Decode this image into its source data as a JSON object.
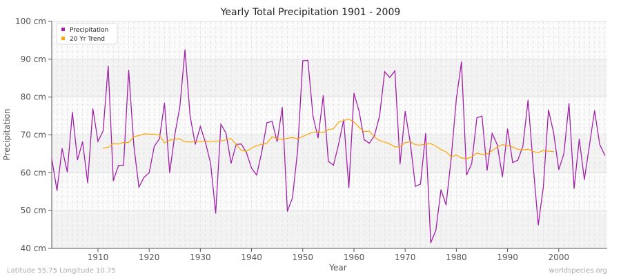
{
  "chart_data": {
    "type": "line",
    "title": "Yearly Total Precipitation 1901 - 2009",
    "xlabel": "Year",
    "ylabel": "Precipitation",
    "xlim": [
      1901,
      2009
    ],
    "ylim": [
      40,
      100
    ],
    "y_unit": "cm",
    "x_ticks": [
      1910,
      1920,
      1930,
      1940,
      1950,
      1960,
      1970,
      1980,
      1990,
      2000
    ],
    "y_ticks": [
      40,
      50,
      60,
      70,
      80,
      90,
      100
    ],
    "y_tick_labels": [
      "40 cm",
      "50 cm",
      "60 cm",
      "70 cm",
      "80 cm",
      "90 cm",
      "100 cm"
    ],
    "grid": true,
    "legend_position": "top-left",
    "series": [
      {
        "name": "Precipitation",
        "color": "#a020a8",
        "x_start": 1901,
        "values": [
          63.5,
          55.3,
          66.4,
          60.2,
          76.0,
          63.4,
          68.2,
          57.3,
          76.9,
          68.3,
          71.0,
          88.2,
          57.9,
          61.9,
          62.0,
          87.1,
          67.3,
          56.2,
          58.8,
          60.0,
          67.0,
          68.9,
          78.4,
          60.0,
          70.0,
          77.5,
          92.5,
          75.0,
          67.5,
          72.2,
          68.0,
          62.5,
          49.3,
          72.8,
          70.5,
          62.5,
          67.5,
          67.6,
          65.3,
          61.2,
          59.4,
          65.5,
          73.2,
          73.6,
          68.2,
          77.3,
          49.8,
          53.4,
          66.0,
          89.6,
          89.7,
          75.0,
          69.2,
          80.4,
          63.0,
          62.0,
          67.5,
          74.0,
          56.0,
          81.0,
          76.3,
          68.7,
          67.8,
          69.8,
          75.0,
          86.7,
          85.2,
          86.9,
          62.3,
          76.2,
          68.0,
          56.4,
          57.0,
          70.4,
          41.5,
          44.8,
          55.5,
          51.5,
          64.0,
          79.6,
          89.3,
          59.4,
          62.4,
          74.5,
          75.0,
          60.6,
          70.4,
          67.4,
          58.9,
          71.6,
          62.7,
          63.3,
          67.0,
          79.2,
          62.0,
          46.2,
          56.3,
          76.6,
          70.5,
          60.8,
          65.0,
          78.3,
          55.8,
          68.9,
          58.2,
          67.3,
          76.4,
          67.5,
          64.6
        ]
      },
      {
        "name": "20 Yr Trend",
        "color": "#ffa500",
        "x_start": 1911,
        "values": [
          66.5,
          66.7,
          67.7,
          67.6,
          68.0,
          68.0,
          69.5,
          69.8,
          70.3,
          70.2,
          70.2,
          69.9,
          67.9,
          68.6,
          68.9,
          68.9,
          68.2,
          68.1,
          68.3,
          68.3,
          68.3,
          68.3,
          68.4,
          68.4,
          68.7,
          69.0,
          67.5,
          65.9,
          65.7,
          66.5,
          67.2,
          67.5,
          67.8,
          69.5,
          69.0,
          68.8,
          69.1,
          69.3,
          68.9,
          69.6,
          70.2,
          70.7,
          70.8,
          70.6,
          71.4,
          71.6,
          73.4,
          73.8,
          74.2,
          73.4,
          72.0,
          70.9,
          71.0,
          69.4,
          68.5,
          68.1,
          67.6,
          66.8,
          66.9,
          68.0,
          68.2,
          67.4,
          67.3,
          67.6,
          67.7,
          67.0,
          66.1,
          65.5,
          64.2,
          64.7,
          63.9,
          63.7,
          64.2,
          65.2,
          64.8,
          65.0,
          65.8,
          66.8,
          67.4,
          67.2,
          66.8,
          66.2,
          66.0,
          66.2,
          65.6,
          65.3,
          65.9,
          65.7,
          65.6
        ]
      }
    ]
  },
  "footer": {
    "location": "Latitude 55.75 Longitude 10.75",
    "credit": "worldspecies.org"
  }
}
